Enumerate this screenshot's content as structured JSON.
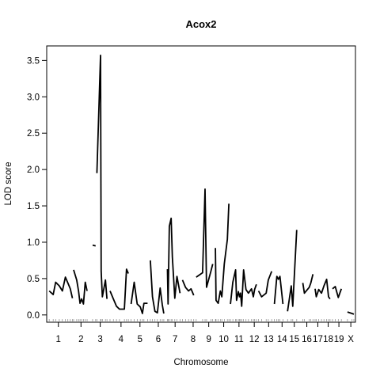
{
  "chart_data": {
    "type": "line",
    "title": "Acox2",
    "xlabel": "Chromosome",
    "ylabel": "LOD score",
    "ylim": [
      -0.1,
      3.7
    ],
    "xlim": [
      0,
      100
    ],
    "y_ticks": [
      0.0,
      0.5,
      1.0,
      1.5,
      2.0,
      2.5,
      3.0,
      3.5
    ],
    "y_tick_labels": [
      "0.0",
      "0.5",
      "1.0",
      "1.5",
      "2.0",
      "2.5",
      "3.0",
      "3.5"
    ],
    "chromosome_labels": [
      {
        "label": "1",
        "x": 3.3
      },
      {
        "label": "2",
        "x": 10.7
      },
      {
        "label": "3",
        "x": 17.0
      },
      {
        "label": "4",
        "x": 23.8
      },
      {
        "label": "5",
        "x": 30.0
      },
      {
        "label": "6",
        "x": 36.0
      },
      {
        "label": "7",
        "x": 41.5
      },
      {
        "label": "8",
        "x": 47.4
      },
      {
        "label": "9",
        "x": 52.5
      },
      {
        "label": "10",
        "x": 57.4
      },
      {
        "label": "11",
        "x": 62.4
      },
      {
        "label": "12",
        "x": 67.4
      },
      {
        "label": "13",
        "x": 72.1
      },
      {
        "label": "14",
        "x": 76.5
      },
      {
        "label": "15",
        "x": 80.5
      },
      {
        "label": "16",
        "x": 84.6
      },
      {
        "label": "17",
        "x": 88.2
      },
      {
        "label": "18",
        "x": 91.6
      },
      {
        "label": "19",
        "x": 95.1
      },
      {
        "label": "X",
        "x": 99.0
      }
    ],
    "series": [
      {
        "points": [
          [
            0.3,
            0.33
          ],
          [
            1.6,
            0.28
          ],
          [
            2.4,
            0.45
          ],
          [
            3.6,
            0.4
          ],
          [
            4.6,
            0.33
          ],
          [
            5.6,
            0.52
          ],
          [
            6.4,
            0.44
          ],
          [
            7.2,
            0.36
          ],
          [
            7.9,
            0.23
          ]
        ]
      },
      {
        "points": [
          [
            8.3,
            0.62
          ],
          [
            9.3,
            0.48
          ],
          [
            9.9,
            0.33
          ],
          [
            10.4,
            0.16
          ],
          [
            10.9,
            0.22
          ],
          [
            11.5,
            0.15
          ],
          [
            12.1,
            0.45
          ],
          [
            12.7,
            0.33
          ]
        ]
      },
      {
        "points": [
          [
            14.5,
            0.96
          ],
          [
            15.5,
            0.95
          ]
        ]
      },
      {
        "points": [
          [
            15.9,
            1.95
          ],
          [
            17.1,
            3.57
          ],
          [
            17.3,
            0.6
          ],
          [
            17.7,
            0.25
          ],
          [
            18.7,
            0.48
          ],
          [
            19.2,
            0.22
          ]
        ]
      },
      {
        "points": [
          [
            20.2,
            0.33
          ],
          [
            21.3,
            0.22
          ],
          [
            22.3,
            0.12
          ],
          [
            23.3,
            0.08
          ],
          [
            24.9,
            0.08
          ],
          [
            25.6,
            0.63
          ],
          [
            26.2,
            0.57
          ]
        ]
      },
      {
        "points": [
          [
            27.1,
            0.15
          ],
          [
            28.1,
            0.45
          ],
          [
            29.1,
            0.15
          ],
          [
            30.1,
            0.11
          ],
          [
            30.8,
            0.02
          ],
          [
            31.3,
            0.16
          ],
          [
            32.5,
            0.16
          ]
        ]
      },
      {
        "points": [
          [
            33.4,
            0.75
          ],
          [
            34.1,
            0.25
          ],
          [
            34.9,
            0.05
          ],
          [
            35.7,
            0.03
          ],
          [
            36.6,
            0.37
          ],
          [
            37.3,
            0.14
          ],
          [
            37.8,
            0.02
          ]
        ]
      },
      {
        "points": [
          [
            39.0,
            0.63
          ],
          [
            39.2,
            0.15
          ],
          [
            39.6,
            1.22
          ],
          [
            40.2,
            1.33
          ],
          [
            40.6,
            0.8
          ],
          [
            41.4,
            0.23
          ],
          [
            42.1,
            0.53
          ],
          [
            43.1,
            0.3
          ]
        ]
      },
      {
        "points": [
          [
            43.9,
            0.48
          ],
          [
            44.9,
            0.38
          ],
          [
            45.9,
            0.33
          ],
          [
            46.7,
            0.36
          ],
          [
            47.6,
            0.27
          ]
        ]
      },
      {
        "points": [
          [
            48.4,
            0.52
          ],
          [
            50.5,
            0.58
          ],
          [
            51.3,
            1.73
          ],
          [
            51.8,
            0.38
          ],
          [
            53.2,
            0.6
          ],
          [
            53.8,
            0.7
          ]
        ]
      },
      {
        "points": [
          [
            54.7,
            0.92
          ],
          [
            54.9,
            0.2
          ],
          [
            55.6,
            0.16
          ],
          [
            56.3,
            0.33
          ],
          [
            56.8,
            0.25
          ],
          [
            57.6,
            0.7
          ],
          [
            58.6,
            1.04
          ],
          [
            59.1,
            1.53
          ]
        ]
      },
      {
        "points": [
          [
            59.6,
            0.15
          ],
          [
            60.4,
            0.45
          ],
          [
            61.3,
            0.62
          ],
          [
            61.6,
            0.2
          ],
          [
            62.2,
            0.32
          ],
          [
            62.6,
            0.25
          ],
          [
            62.9,
            0.3
          ],
          [
            63.3,
            0.12
          ],
          [
            63.9,
            0.62
          ],
          [
            64.7,
            0.35
          ],
          [
            65.5,
            0.3
          ],
          [
            66.5,
            0.36
          ],
          [
            67.1,
            0.25
          ],
          [
            67.5,
            0.35
          ],
          [
            68.1,
            0.42
          ]
        ]
      },
      {
        "points": [
          [
            68.8,
            0.33
          ],
          [
            69.8,
            0.25
          ],
          [
            71.3,
            0.3
          ],
          [
            72.0,
            0.48
          ],
          [
            73.1,
            0.6
          ]
        ]
      },
      {
        "points": [
          [
            74.0,
            0.15
          ],
          [
            74.8,
            0.53
          ],
          [
            75.3,
            0.49
          ],
          [
            75.8,
            0.53
          ],
          [
            76.8,
            0.15
          ]
        ]
      },
      {
        "points": [
          [
            78.3,
            0.05
          ],
          [
            79.5,
            0.4
          ],
          [
            80.0,
            0.12
          ],
          [
            81.3,
            1.17
          ]
        ]
      },
      {
        "points": [
          [
            83.3,
            0.44
          ],
          [
            83.8,
            0.3
          ],
          [
            85.4,
            0.38
          ],
          [
            85.9,
            0.44
          ],
          [
            86.6,
            0.56
          ]
        ]
      },
      {
        "points": [
          [
            87.3,
            0.36
          ],
          [
            87.7,
            0.25
          ],
          [
            88.5,
            0.35
          ],
          [
            89.4,
            0.3
          ],
          [
            90.2,
            0.4
          ],
          [
            91.1,
            0.49
          ],
          [
            91.7,
            0.25
          ],
          [
            92.2,
            0.22
          ]
        ]
      },
      {
        "points": [
          [
            93.0,
            0.36
          ],
          [
            93.9,
            0.39
          ],
          [
            94.9,
            0.24
          ],
          [
            95.9,
            0.36
          ]
        ]
      },
      {
        "points": [
          [
            97.9,
            0.04
          ],
          [
            99.4,
            0.02
          ],
          [
            100.0,
            0.01
          ]
        ]
      }
    ]
  }
}
